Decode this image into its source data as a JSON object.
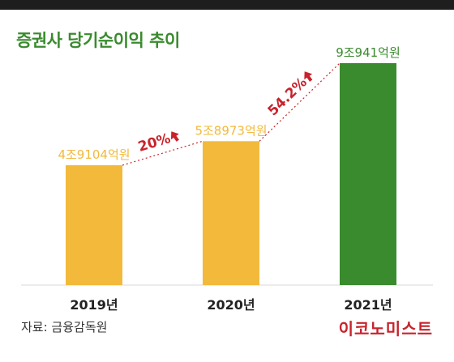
{
  "chart_data": {
    "type": "bar",
    "title": "증권사 당기순이익 추이",
    "categories": [
      "2019년",
      "2020년",
      "2021년"
    ],
    "values": [
      49104,
      58973,
      90941
    ],
    "value_labels": [
      "4조9104억원",
      "5조8973억원",
      "9조941억원"
    ],
    "growth_labels": [
      "20%",
      "54.2%"
    ],
    "ylim": [
      0,
      90941
    ],
    "grid": false,
    "legend": "none",
    "colors": {
      "bars": [
        "#f2b93b",
        "#f2b93b",
        "#3a8a2e"
      ],
      "labels": [
        "#f2b93b",
        "#f2b93b",
        "#3a8a2e"
      ],
      "growth": "#c8232c"
    }
  },
  "source": "자료: 금융감독원",
  "brand": "이코노미스트"
}
